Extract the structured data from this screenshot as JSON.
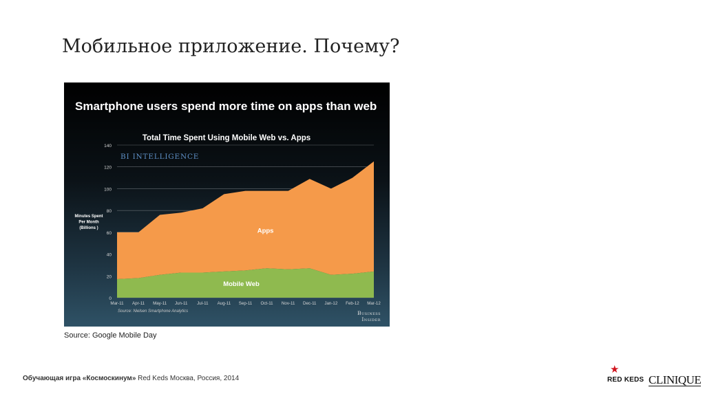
{
  "slide": {
    "title": "Мобильное приложение. Почему?",
    "source_caption": "Source: Google Mobile Day",
    "footer_bold": "Обучающая игра «Космоскинум»",
    "footer_rest": " Red Keds Москва, Россия, 2014"
  },
  "logos": {
    "redkeds": "RED KEDS",
    "clinique": "CLINIQUE"
  },
  "chart_data": {
    "type": "area",
    "headline": "Smartphone users spend more time on apps than web",
    "title": "Total Time Spent Using Mobile Web vs. Apps",
    "watermark": "BI INTELLIGENCE",
    "ylabel_lines": [
      "Minutes Spent",
      "Per Month",
      "(Billions )"
    ],
    "xlabel": "",
    "ylim": [
      0,
      140
    ],
    "yticks": [
      0,
      20,
      40,
      60,
      80,
      100,
      120,
      140
    ],
    "stacked": true,
    "categories": [
      "Mar-11",
      "Apr-11",
      "May-11",
      "Jun-11",
      "Jul-11",
      "Aug-11",
      "Sep-11",
      "Oct-11",
      "Nov-11",
      "Dec-11",
      "Jan-12",
      "Feb-12",
      "Mar-12"
    ],
    "series": [
      {
        "name": "Mobile Web",
        "color": "#8fba4f",
        "values": [
          17,
          18,
          21,
          23,
          23,
          24,
          25,
          27,
          26,
          27,
          21,
          22,
          24
        ]
      },
      {
        "name": "Apps",
        "color": "#f59a4a",
        "values": [
          43,
          42,
          55,
          55,
          59,
          71,
          73,
          71,
          72,
          82,
          79,
          88,
          101
        ]
      }
    ],
    "source_note": "Source: Nielsen Smartphone Analytics",
    "brand_lines": [
      "Business",
      "Insider"
    ]
  }
}
